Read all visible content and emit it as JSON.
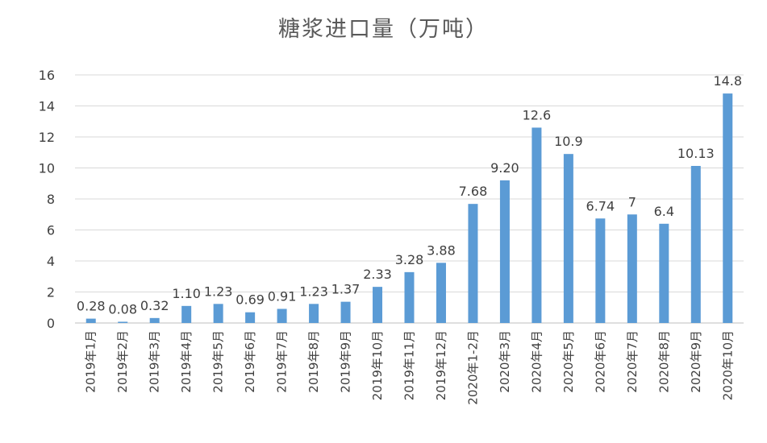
{
  "chart_data": {
    "type": "bar",
    "title": "糖浆进口量（万吨）",
    "xlabel": "",
    "ylabel": "",
    "ylim": [
      0,
      16
    ],
    "yticks": [
      0,
      2,
      4,
      6,
      8,
      10,
      12,
      14,
      16
    ],
    "grid": true,
    "legend": "none",
    "bar_color": "#5B9BD5",
    "categories": [
      "2019年1月",
      "2019年2月",
      "2019年3月",
      "2019年4月",
      "2019年5月",
      "2019年6月",
      "2019年7月",
      "2019年8月",
      "2019年9月",
      "2019年10月",
      "2019年11月",
      "2019年12月",
      "2020年1-2月",
      "2020年3月",
      "2020年4月",
      "2020年5月",
      "2020年6月",
      "2020年7月",
      "2020年8月",
      "2020年9月",
      "2020年10月"
    ],
    "values": [
      0.28,
      0.08,
      0.32,
      1.1,
      1.23,
      0.69,
      0.91,
      1.23,
      1.37,
      2.33,
      3.28,
      3.88,
      7.68,
      9.2,
      12.6,
      10.9,
      6.74,
      7,
      6.4,
      10.13,
      14.8
    ],
    "value_labels": [
      "0.28",
      "0.08",
      "0.32",
      "1.10",
      "1.23",
      "0.69",
      "0.91",
      "1.23",
      "1.37",
      "2.33",
      "3.28",
      "3.88",
      "7.68",
      "9.20",
      "12.6",
      "10.9",
      "6.74",
      "7",
      "6.4",
      "10.13",
      "14.8"
    ]
  }
}
